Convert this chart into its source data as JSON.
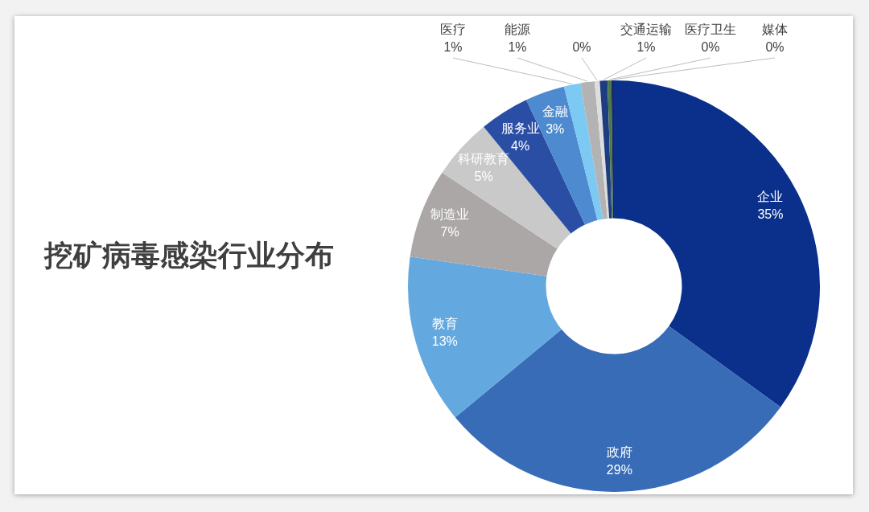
{
  "chart_data": {
    "type": "donut",
    "title": "挖矿病毒感染行业分布",
    "categories": [
      "企业",
      "政府",
      "教育",
      "制造业",
      "科研教育",
      "服务业",
      "金融",
      "医疗",
      "能源",
      null,
      "交通运输",
      "医疗卫生",
      "媒体"
    ],
    "values": [
      35.0,
      29.0,
      13.3,
      7.0,
      4.8,
      3.9,
      3.1,
      1.3,
      1.1,
      0.4,
      0.6,
      0.3,
      0.2
    ],
    "colors": [
      "#0a308c",
      "#386cb6",
      "#63a9df",
      "#aba7a7",
      "#c9c9c9",
      "#2b4ea5",
      "#4d8ad0",
      "#7ccaf4",
      "#b3b3b3",
      "#dddddd",
      "#1e3d80",
      "#4c7a4c",
      "#1a2a60"
    ],
    "value_labels": [
      "35%",
      "29%",
      "13%",
      "7%",
      "5%",
      "4%",
      "3%",
      "1%",
      "1%",
      "0%",
      "1%",
      "0%",
      "0%"
    ]
  }
}
